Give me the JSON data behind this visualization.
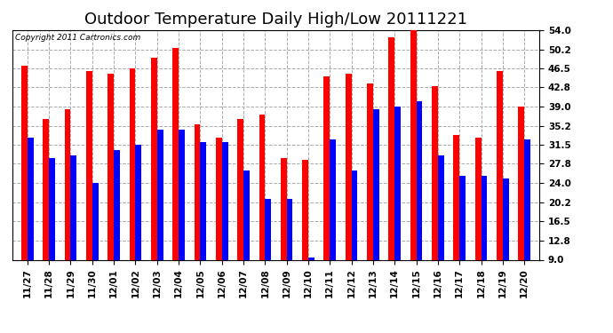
{
  "title": "Outdoor Temperature Daily High/Low 20111221",
  "copyright": "Copyright 2011 Cartronics.com",
  "categories": [
    "11/27",
    "11/28",
    "11/29",
    "11/30",
    "12/01",
    "12/02",
    "12/03",
    "12/04",
    "12/05",
    "12/06",
    "12/07",
    "12/08",
    "12/09",
    "12/10",
    "12/11",
    "12/12",
    "12/13",
    "12/14",
    "12/15",
    "12/16",
    "12/17",
    "12/18",
    "12/19",
    "12/20"
  ],
  "highs": [
    47.0,
    36.5,
    38.5,
    46.0,
    45.5,
    46.5,
    48.5,
    50.5,
    35.5,
    33.0,
    36.5,
    37.5,
    29.0,
    28.5,
    45.0,
    45.5,
    43.5,
    52.5,
    54.0,
    43.0,
    33.5,
    33.0,
    46.0,
    39.0
  ],
  "lows": [
    33.0,
    29.0,
    29.5,
    24.0,
    30.5,
    31.5,
    34.5,
    34.5,
    32.0,
    32.0,
    26.5,
    21.0,
    21.0,
    9.5,
    32.5,
    26.5,
    38.5,
    39.0,
    40.0,
    29.5,
    25.5,
    25.5,
    25.0,
    32.5
  ],
  "high_color": "#ff0000",
  "low_color": "#0000ff",
  "bg_color": "#ffffff",
  "plot_bg_color": "#ffffff",
  "grid_color": "#aaaaaa",
  "yticks": [
    9.0,
    12.8,
    16.5,
    20.2,
    24.0,
    27.8,
    31.5,
    35.2,
    39.0,
    42.8,
    46.5,
    50.2,
    54.0
  ],
  "ymin": 9.0,
  "ymax": 54.0,
  "title_fontsize": 13,
  "tick_fontsize": 7.5,
  "bar_width": 0.28
}
